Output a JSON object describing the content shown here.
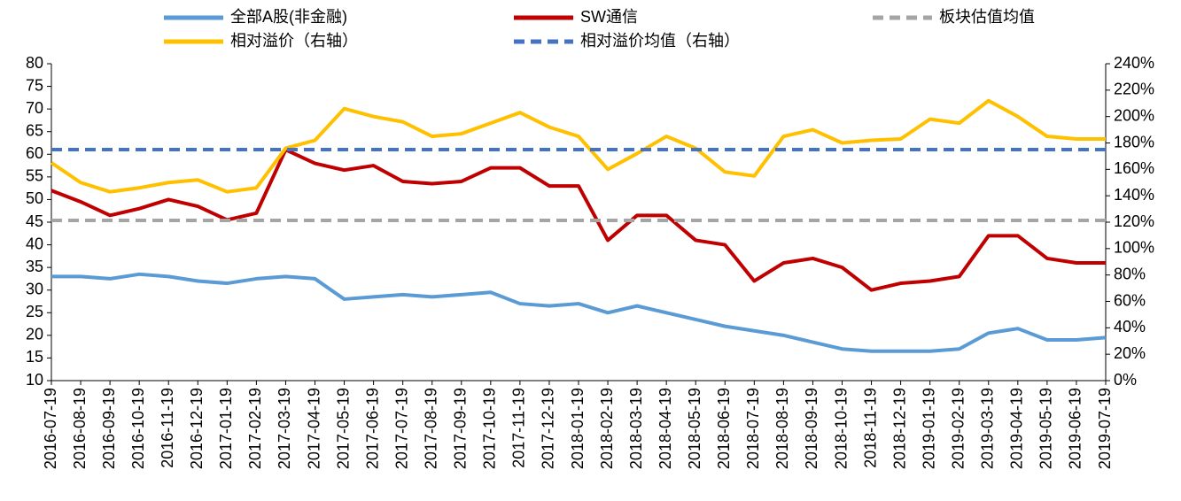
{
  "chart_data": {
    "type": "line",
    "categories": [
      "2016-07-19",
      "2016-08-19",
      "2016-09-19",
      "2016-10-19",
      "2016-11-19",
      "2016-12-19",
      "2017-01-19",
      "2017-02-19",
      "2017-03-19",
      "2017-04-19",
      "2017-05-19",
      "2017-06-19",
      "2017-07-19",
      "2017-08-19",
      "2017-09-19",
      "2017-10-19",
      "2017-11-19",
      "2017-12-19",
      "2018-01-19",
      "2018-02-19",
      "2018-03-19",
      "2018-04-19",
      "2018-05-19",
      "2018-06-19",
      "2018-07-19",
      "2018-08-19",
      "2018-09-19",
      "2018-10-19",
      "2018-11-19",
      "2018-12-19",
      "2019-01-19",
      "2019-02-19",
      "2019-03-19",
      "2019-04-19",
      "2019-05-19",
      "2019-06-19",
      "2019-07-19"
    ],
    "series": [
      {
        "name": "全部A股(非金融)",
        "color": "#5b9bd5",
        "values": [
          33,
          33,
          32.5,
          33.5,
          33,
          32,
          31.5,
          32.5,
          33,
          32.5,
          28,
          28.5,
          29,
          28.5,
          29,
          29.5,
          27,
          26.5,
          27,
          25,
          26.5,
          25,
          23.5,
          22,
          21,
          20,
          18.5,
          17,
          16.5,
          16.5,
          16.5,
          17,
          20.5,
          21.5,
          19,
          19,
          19.5
        ]
      },
      {
        "name": "SW通信",
        "color": "#c00000",
        "values": [
          52,
          49.5,
          46.5,
          48,
          50,
          48.5,
          45.5,
          47,
          61,
          58,
          56.5,
          57.5,
          54,
          53.5,
          54,
          57,
          57,
          53,
          53,
          41,
          46.5,
          46.5,
          41,
          40,
          32,
          36,
          37,
          35,
          30,
          31.5,
          32,
          33,
          42,
          42,
          37,
          36,
          36
        ]
      },
      {
        "name": "板块估值均值",
        "color": "#a5a5a5",
        "dashed": true,
        "value": 45.4
      },
      {
        "name": "相对溢价（右轴）",
        "color": "#ffc000",
        "axis": "y2",
        "values": [
          165,
          150,
          143,
          146,
          150,
          152,
          143,
          146,
          176,
          182,
          206,
          200,
          196,
          185,
          187,
          195,
          203,
          192,
          185,
          160,
          172,
          185,
          176,
          158,
          155,
          185,
          190,
          180,
          182,
          183,
          198,
          195,
          212,
          200,
          185,
          183,
          183
        ]
      },
      {
        "name": "相对溢价均值（右轴）",
        "color": "#4472c4",
        "dashed": true,
        "axis": "y2",
        "value": 175
      }
    ],
    "ylim": [
      10,
      80
    ],
    "yticks": [
      10,
      15,
      20,
      25,
      30,
      35,
      40,
      45,
      50,
      55,
      60,
      65,
      70,
      75,
      80
    ],
    "y2lim": [
      0,
      240
    ],
    "y2ticks": [
      {
        "value": 0,
        "label": "0%"
      },
      {
        "value": 20,
        "label": "20%"
      },
      {
        "value": 40,
        "label": "40%"
      },
      {
        "value": 60,
        "label": "60%"
      },
      {
        "value": 80,
        "label": "80%"
      },
      {
        "value": 100,
        "label": "100%"
      },
      {
        "value": 120,
        "label": "120%"
      },
      {
        "value": 140,
        "label": "140%"
      },
      {
        "value": 160,
        "label": "160%"
      },
      {
        "value": 180,
        "label": "180%"
      },
      {
        "value": 200,
        "label": "200%"
      },
      {
        "value": 220,
        "label": "220%"
      },
      {
        "value": 240,
        "label": "240%"
      }
    ],
    "grid": false
  }
}
